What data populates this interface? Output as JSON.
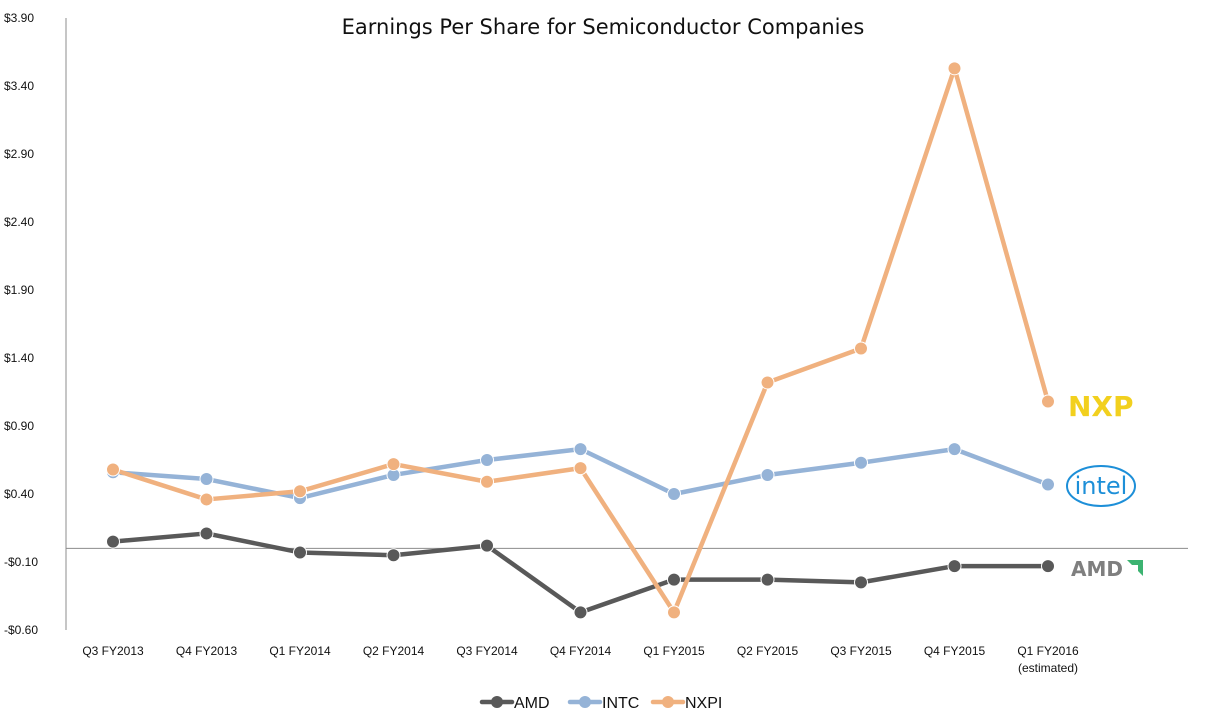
{
  "chart_data": {
    "type": "line",
    "title": "Earnings Per Share for Semiconductor Companies",
    "xlabel": "",
    "ylabel": "",
    "categories": [
      "Q3 FY2013",
      "Q4 FY2013",
      "Q1 FY2014",
      "Q2 FY2014",
      "Q3 FY2014",
      "Q4 FY2014",
      "Q1 FY2015",
      "Q2 FY2015",
      "Q3 FY2015",
      "Q4 FY2015",
      "Q1 FY2016"
    ],
    "category_sublabels": [
      "",
      "",
      "",
      "",
      "",
      "",
      "",
      "",
      "",
      "",
      "(estimated)"
    ],
    "y_tick_labels": [
      "$3.90",
      "$3.40",
      "$2.90",
      "$2.40",
      "$1.90",
      "$1.40",
      "$0.90",
      "$0.40",
      "-$0.10",
      "-$0.60"
    ],
    "y_ticks": [
      3.9,
      3.4,
      2.9,
      2.4,
      1.9,
      1.4,
      0.9,
      0.4,
      -0.1,
      -0.6
    ],
    "ylim": [
      -0.6,
      3.9
    ],
    "grid": false,
    "legend_position": "bottom",
    "series": [
      {
        "name": "AMD",
        "color": "#595959",
        "values": [
          0.05,
          0.11,
          -0.03,
          -0.05,
          0.02,
          -0.47,
          -0.23,
          -0.23,
          -0.25,
          -0.13,
          -0.13
        ]
      },
      {
        "name": "INTC",
        "color": "#95B3D7",
        "values": [
          0.56,
          0.51,
          0.37,
          0.54,
          0.65,
          0.73,
          0.4,
          0.54,
          0.63,
          0.73,
          0.47
        ]
      },
      {
        "name": "NXPI",
        "color": "#F0B17F",
        "values": [
          0.58,
          0.36,
          0.42,
          0.62,
          0.49,
          0.59,
          -0.47,
          1.22,
          1.47,
          3.53,
          1.08
        ]
      }
    ],
    "logos": {
      "nxp": "NXP",
      "intel": "intel",
      "amd": "AMD"
    }
  }
}
